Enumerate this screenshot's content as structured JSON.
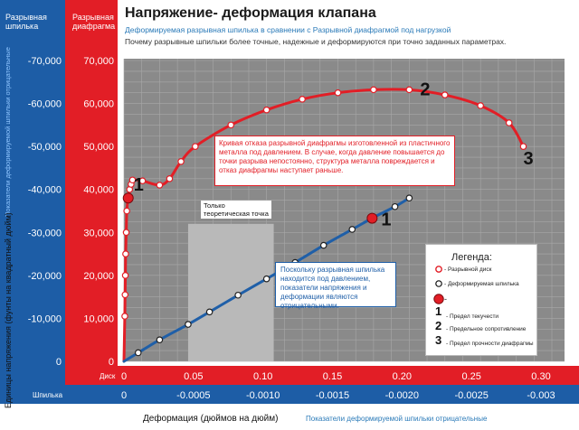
{
  "title": "Напряжение- деформация клапана",
  "subtitle": "Деформируемая разрывная шпилька в сравнении с Разрывной диафрагмой под нагрузкой",
  "subtitle2": "Почему разрывные шпильки более точные, надежные и деформируются при точно заданных параметрах.",
  "header_left": "Разрывная шпилька",
  "header_right": "Разрывная диафрагма",
  "left_vertical_label": "Показатели деформируемой шпильки отрицательные",
  "y_axis_title": "Единицы напряжения (фунты на квадратный дюйм)",
  "x_axis_title": "Деформация (дюймов на дюйм)",
  "x_axis_note": "Показатели деформируемой шпильки отрицательные",
  "row_label_disc": "Диск",
  "row_label_pin": "Шпилька",
  "callout_red": "Кривая отказа разрывной диафрагмы изготовленной из пластичного металла под давлением. В случае, когда давление повышается до точки разрыва непостоянно, структура металла повреждается и отказ диафрагмы наступает раньше.",
  "callout_blue": "Поскольку разрывная шпилька находится под давлением, показатели напряжения и деформации являются отрицательными.",
  "theory_note": "Только теоретическая точка",
  "legend": {
    "title": "Легенда:",
    "disc": "- Разрывной диск",
    "pin": "- Деформируемая шпилька",
    "red_dot": "-",
    "n1": "1",
    "n1_text": "- Предел текучести",
    "n2": "2",
    "n2_text": "- Предельное сопротивление",
    "n3": "3",
    "n3_text": "- Предел прочности диафрагмы"
  },
  "chart_data": {
    "type": "line",
    "x": {
      "disc_ticks": [
        "0",
        "0.05",
        "0.10",
        "0.15",
        "0.20",
        "0.25",
        "0.30"
      ],
      "pin_ticks": [
        "0",
        "-0.0005",
        "-0.0010",
        "-0.0015",
        "-0.0020",
        "-0.0025",
        "-0.003"
      ],
      "disc_range": [
        0,
        0.3
      ],
      "pin_range": [
        0,
        -0.003
      ]
    },
    "y": {
      "disc_ticks": [
        "0",
        "10,000",
        "20,000",
        "30,000",
        "40,000",
        "50,000",
        "60,000",
        "70,000"
      ],
      "pin_ticks": [
        "0",
        "-10,000",
        "-20,000",
        "-30,000",
        "-40,000",
        "-50,000",
        "-60,000",
        "-70,000"
      ],
      "range": [
        0,
        70000
      ]
    },
    "grid": true,
    "shaded_region": {
      "x_from": 0.045,
      "x_to": 0.105,
      "y_from": 0,
      "y_to": 32000
    },
    "series": [
      {
        "name": "Разрывной диск",
        "color": "#e21e26",
        "points": [
          {
            "x": 0.0,
            "y": 0
          },
          {
            "x": 0.0006,
            "y": 10500
          },
          {
            "x": 0.0008,
            "y": 15500
          },
          {
            "x": 0.001,
            "y": 20000
          },
          {
            "x": 0.0012,
            "y": 25000
          },
          {
            "x": 0.0016,
            "y": 30000
          },
          {
            "x": 0.002,
            "y": 35000
          },
          {
            "x": 0.003,
            "y": 38000
          },
          {
            "x": 0.004,
            "y": 40000
          },
          {
            "x": 0.005,
            "y": 41200
          },
          {
            "x": 0.006,
            "y": 42200
          },
          {
            "x": 0.013,
            "y": 42000
          },
          {
            "x": 0.025,
            "y": 41000
          },
          {
            "x": 0.032,
            "y": 42500
          },
          {
            "x": 0.04,
            "y": 46500
          },
          {
            "x": 0.05,
            "y": 50000
          },
          {
            "x": 0.075,
            "y": 55000
          },
          {
            "x": 0.1,
            "y": 58500
          },
          {
            "x": 0.125,
            "y": 61000
          },
          {
            "x": 0.15,
            "y": 62500
          },
          {
            "x": 0.175,
            "y": 63200
          },
          {
            "x": 0.2,
            "y": 63200
          },
          {
            "x": 0.225,
            "y": 62000
          },
          {
            "x": 0.25,
            "y": 59500
          },
          {
            "x": 0.27,
            "y": 55500
          },
          {
            "x": 0.28,
            "y": 50000
          }
        ]
      },
      {
        "name": "Деформируемая шпилька",
        "color": "#1f5fa8",
        "points": [
          {
            "x": 0.0,
            "y": 0
          },
          {
            "x": 0.01,
            "y": 2000
          },
          {
            "x": 0.025,
            "y": 5000
          },
          {
            "x": 0.045,
            "y": 8600
          },
          {
            "x": 0.06,
            "y": 11500
          },
          {
            "x": 0.08,
            "y": 15400
          },
          {
            "x": 0.1,
            "y": 19200
          },
          {
            "x": 0.12,
            "y": 23000
          },
          {
            "x": 0.14,
            "y": 27000
          },
          {
            "x": 0.16,
            "y": 30700
          },
          {
            "x": 0.175,
            "y": 33500
          },
          {
            "x": 0.19,
            "y": 36000
          },
          {
            "x": 0.2,
            "y": 38000
          }
        ]
      }
    ],
    "key_points": [
      {
        "label": "1",
        "series": "Разрывной диск",
        "x": 0.003,
        "y": 38000
      },
      {
        "label": "1",
        "series": "Деформируемая шпилька",
        "x": 0.174,
        "y": 33300
      },
      {
        "label": "2",
        "x": 0.2,
        "y": 63200
      },
      {
        "label": "3",
        "x": 0.28,
        "y": 50000
      }
    ]
  }
}
